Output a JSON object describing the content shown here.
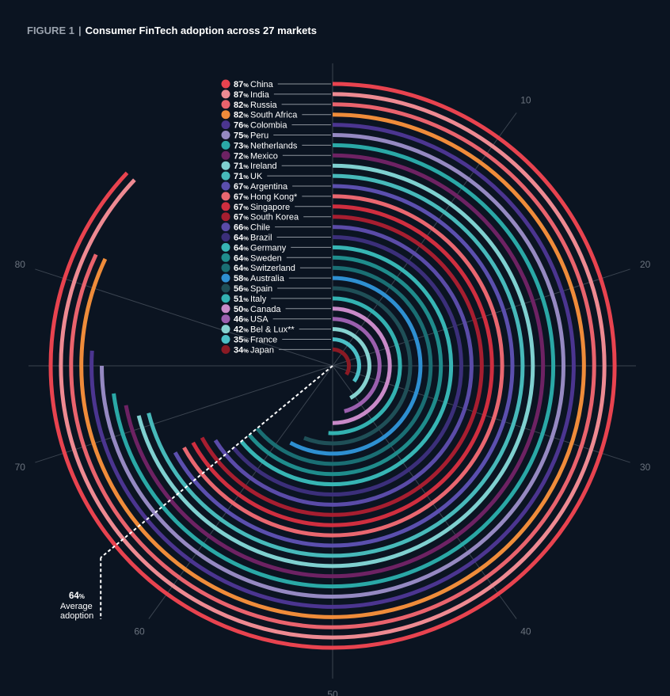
{
  "figure": {
    "number": "FIGURE 1",
    "separator": "|",
    "title": "Consumer FinTech adoption across 27 markets"
  },
  "average": {
    "value": "64",
    "unit": "%",
    "label_line1": "Average",
    "label_line2": "adoption"
  },
  "chart_data": {
    "type": "radial bar",
    "title": "Consumer FinTech adoption across 27 markets",
    "unit": "%",
    "scale_max": 100,
    "axis_ticks": [
      10,
      20,
      30,
      40,
      50,
      60,
      70,
      80
    ],
    "average": 64,
    "markets": [
      {
        "name": "China",
        "value": 87,
        "color": "#e8434f"
      },
      {
        "name": "India",
        "value": 87,
        "color": "#ee8a92"
      },
      {
        "name": "Russia",
        "value": 82,
        "color": "#e9636d"
      },
      {
        "name": "South Africa",
        "value": 82,
        "color": "#ef8c3a"
      },
      {
        "name": "Colombia",
        "value": 76,
        "color": "#4b3590"
      },
      {
        "name": "Peru",
        "value": 75,
        "color": "#9589c2"
      },
      {
        "name": "Netherlands",
        "value": 73,
        "color": "#2aa8a6"
      },
      {
        "name": "Mexico",
        "value": 72,
        "color": "#6d2263"
      },
      {
        "name": "Ireland",
        "value": 71,
        "color": "#7fd0d0"
      },
      {
        "name": "UK",
        "value": 71,
        "color": "#47b9ba"
      },
      {
        "name": "Argentina",
        "value": 67,
        "color": "#5b4fae"
      },
      {
        "name": "Hong Kong*",
        "value": 67,
        "color": "#e96770"
      },
      {
        "name": "Singapore",
        "value": 67,
        "color": "#cf2e3f"
      },
      {
        "name": "South Korea",
        "value": 67,
        "color": "#a61e30"
      },
      {
        "name": "Chile",
        "value": 66,
        "color": "#5a4ba8"
      },
      {
        "name": "Brazil",
        "value": 64,
        "color": "#3b2f7a"
      },
      {
        "name": "Germany",
        "value": 64,
        "color": "#37b5b4"
      },
      {
        "name": "Sweden",
        "value": 64,
        "color": "#1f8c8c"
      },
      {
        "name": "Switzerland",
        "value": 64,
        "color": "#1a6e73"
      },
      {
        "name": "Australia",
        "value": 58,
        "color": "#2e8fd1"
      },
      {
        "name": "Spain",
        "value": 56,
        "color": "#1f4f57"
      },
      {
        "name": "Italy",
        "value": 51,
        "color": "#33b1b1"
      },
      {
        "name": "Canada",
        "value": 50,
        "color": "#c98ac8"
      },
      {
        "name": "USA",
        "value": 46,
        "color": "#9b5fae"
      },
      {
        "name": "Bel & Lux**",
        "value": 42,
        "color": "#86d2d0"
      },
      {
        "name": "France",
        "value": 35,
        "color": "#4bbfc6"
      },
      {
        "name": "Japan",
        "value": 34,
        "color": "#8a1a24"
      }
    ]
  }
}
